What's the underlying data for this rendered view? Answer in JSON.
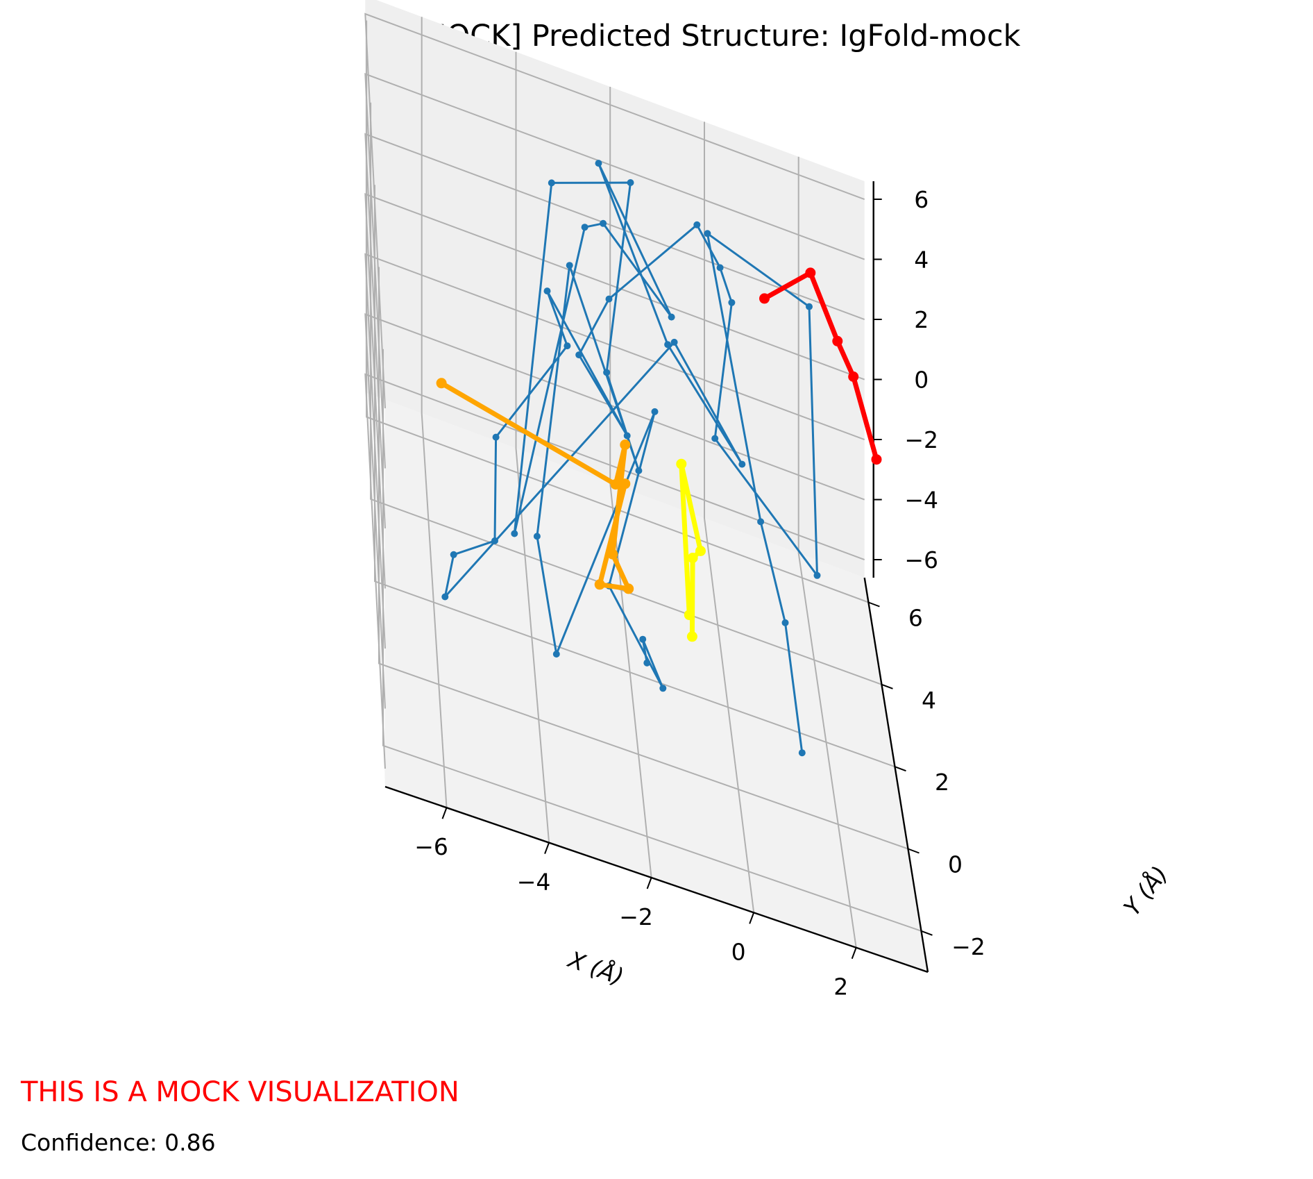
{
  "chart_data": {
    "type": "line3d",
    "title": "[MOCK] Predicted Structure: IgFold-mock",
    "xlabel": "X (Å)",
    "ylabel": "Y (Å)",
    "zlabel": "",
    "xlim": [
      -7.2,
      3.4
    ],
    "ylim": [
      -3.0,
      6.6
    ],
    "zlim": [
      -6.6,
      6.6
    ],
    "x_ticks": [
      "−6",
      "−4",
      "−2",
      "0",
      "2"
    ],
    "y_ticks": [
      "−2",
      "0",
      "2",
      "4",
      "6"
    ],
    "z_ticks": [
      "−6",
      "−4",
      "−2",
      "0",
      "2",
      "4",
      "6"
    ],
    "grid": true,
    "series": [
      {
        "color": "#1f77b4",
        "style": "backbone",
        "points": [
          [
            -1.9,
            -0.8,
            -2.4
          ],
          [
            -2.0,
            -1.0,
            -1.4
          ],
          [
            -1.6,
            -1.0,
            -2.8
          ],
          [
            -2.6,
            -0.1,
            -1.2
          ],
          [
            -1.2,
            5.1,
            -1.7
          ],
          [
            -3.8,
            -2.2,
            -1.3
          ],
          [
            -4.2,
            -2.5,
            2.8
          ],
          [
            -3.2,
            2.4,
            5.7
          ],
          [
            -1.9,
            1.1,
            1.4
          ],
          [
            -2.5,
            1.7,
            3.5
          ],
          [
            -1.7,
            5.2,
            5.5
          ],
          [
            -3.3,
            5.9,
            3.6
          ],
          [
            -4.6,
            -1.8,
            1.7
          ],
          [
            -2.8,
            3.5,
            5.7
          ],
          [
            -2.3,
            4.9,
            4.2
          ],
          [
            -0.8,
            5.6,
            1.0
          ],
          [
            -2.3,
            6.0,
            4.7
          ],
          [
            -0.9,
            5.4,
            0.3
          ],
          [
            0.2,
            1.2,
            2.7
          ],
          [
            -1.0,
            3.0,
            3.6
          ],
          [
            -6.0,
            -2.4,
            -0.4
          ],
          [
            -5.8,
            -1.8,
            0.3
          ],
          [
            -5.0,
            -2.0,
            1.5
          ],
          [
            -4.8,
            0.9,
            1.1
          ],
          [
            -3.2,
            3.0,
            2.2
          ],
          [
            -3.5,
            4.5,
            1.8
          ],
          [
            -2.1,
            1.5,
            1.9
          ],
          [
            -3.0,
            2.5,
            2.7
          ],
          [
            -2.3,
            3.5,
            3.6
          ],
          [
            -0.2,
            6.2,
            3.6
          ],
          [
            0.2,
            5.4,
            3.5
          ],
          [
            0.4,
            5.0,
            3.0
          ],
          [
            -0.1,
            3.6,
            0.1
          ],
          [
            2.0,
            3.5,
            -3.1
          ],
          [
            2.2,
            6.4,
            2.0
          ],
          [
            0.0,
            6.0,
            3.7
          ],
          [
            0.8,
            3.2,
            -1.6
          ],
          [
            1.2,
            2.3,
            -3.5
          ],
          [
            1.3,
            0.2,
            -4.9
          ]
        ]
      },
      {
        "color": "#ff0000",
        "style": "highlight",
        "points": [
          [
            1.3,
            6.8,
            1.2
          ],
          [
            2.2,
            6.2,
            3.4
          ],
          [
            2.8,
            6.4,
            1.2
          ],
          [
            3.0,
            5.4,
            1.5
          ],
          [
            3.5,
            5.5,
            -1.1
          ]
        ]
      },
      {
        "color": "#ffa500",
        "style": "highlight",
        "points": [
          [
            -6.0,
            -1.0,
            4.8
          ],
          [
            -2.4,
            0.7,
            1.2
          ],
          [
            -2.2,
            0.8,
            2.5
          ],
          [
            -2.5,
            0.2,
            -0.5
          ],
          [
            -2.2,
            0.0,
            -1.2
          ],
          [
            -2.8,
            -0.3,
            -1.0
          ],
          [
            -2.2,
            0.8,
            1.2
          ]
        ]
      },
      {
        "color": "#ffff00",
        "style": "highlight",
        "points": [
          [
            -1.0,
            -0.2,
            -1.1
          ],
          [
            -1.0,
            1.5,
            1.6
          ],
          [
            -0.6,
            1.6,
            -1.2
          ],
          [
            -0.8,
            1.2,
            -1.0
          ],
          [
            -1.0,
            -0.8,
            -1.0
          ]
        ]
      }
    ]
  },
  "notes": {
    "warning": "THIS IS A MOCK VISUALIZATION",
    "confidence": "Confidence: 0.86"
  }
}
